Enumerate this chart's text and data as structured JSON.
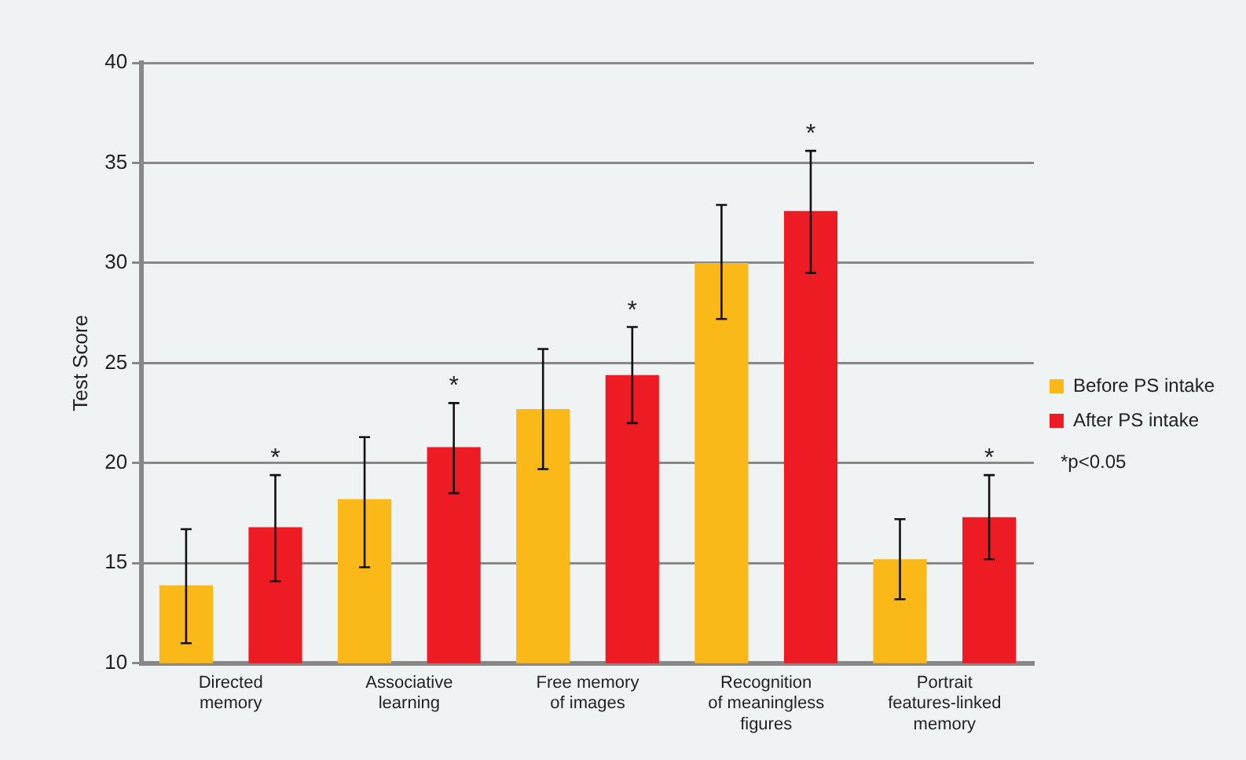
{
  "chart_data": {
    "type": "bar",
    "ylabel": "Test Score",
    "categories": [
      "Directed\nmemory",
      "Associative\nlearning",
      "Free memory\nof images",
      "Recognition\nof meaningless\nfigures",
      "Portrait\nfeatures-linked\nmemory"
    ],
    "series": [
      {
        "name": "Before PS intake",
        "color": "#fbb819",
        "values": [
          13.9,
          18.2,
          22.7,
          30.0,
          15.2
        ],
        "errors": [
          [
            11.0,
            16.7
          ],
          [
            14.8,
            21.3
          ],
          [
            19.7,
            25.7
          ],
          [
            27.2,
            32.9
          ],
          [
            13.2,
            17.2
          ]
        ]
      },
      {
        "name": "After PS intake",
        "color": "#ed1c24",
        "values": [
          16.8,
          20.8,
          24.4,
          32.6,
          17.3
        ],
        "errors": [
          [
            14.1,
            19.4
          ],
          [
            18.5,
            23.0
          ],
          [
            22.0,
            26.8
          ],
          [
            29.5,
            35.6
          ],
          [
            15.2,
            19.4
          ]
        ]
      }
    ],
    "ylim": [
      10,
      40
    ],
    "yticks": [
      10,
      15,
      20,
      25,
      30,
      35,
      40
    ],
    "grid": "y",
    "legend": "right",
    "annotations": [
      "*",
      "*",
      "*",
      "*",
      "*",
      "*p<0.05"
    ]
  }
}
